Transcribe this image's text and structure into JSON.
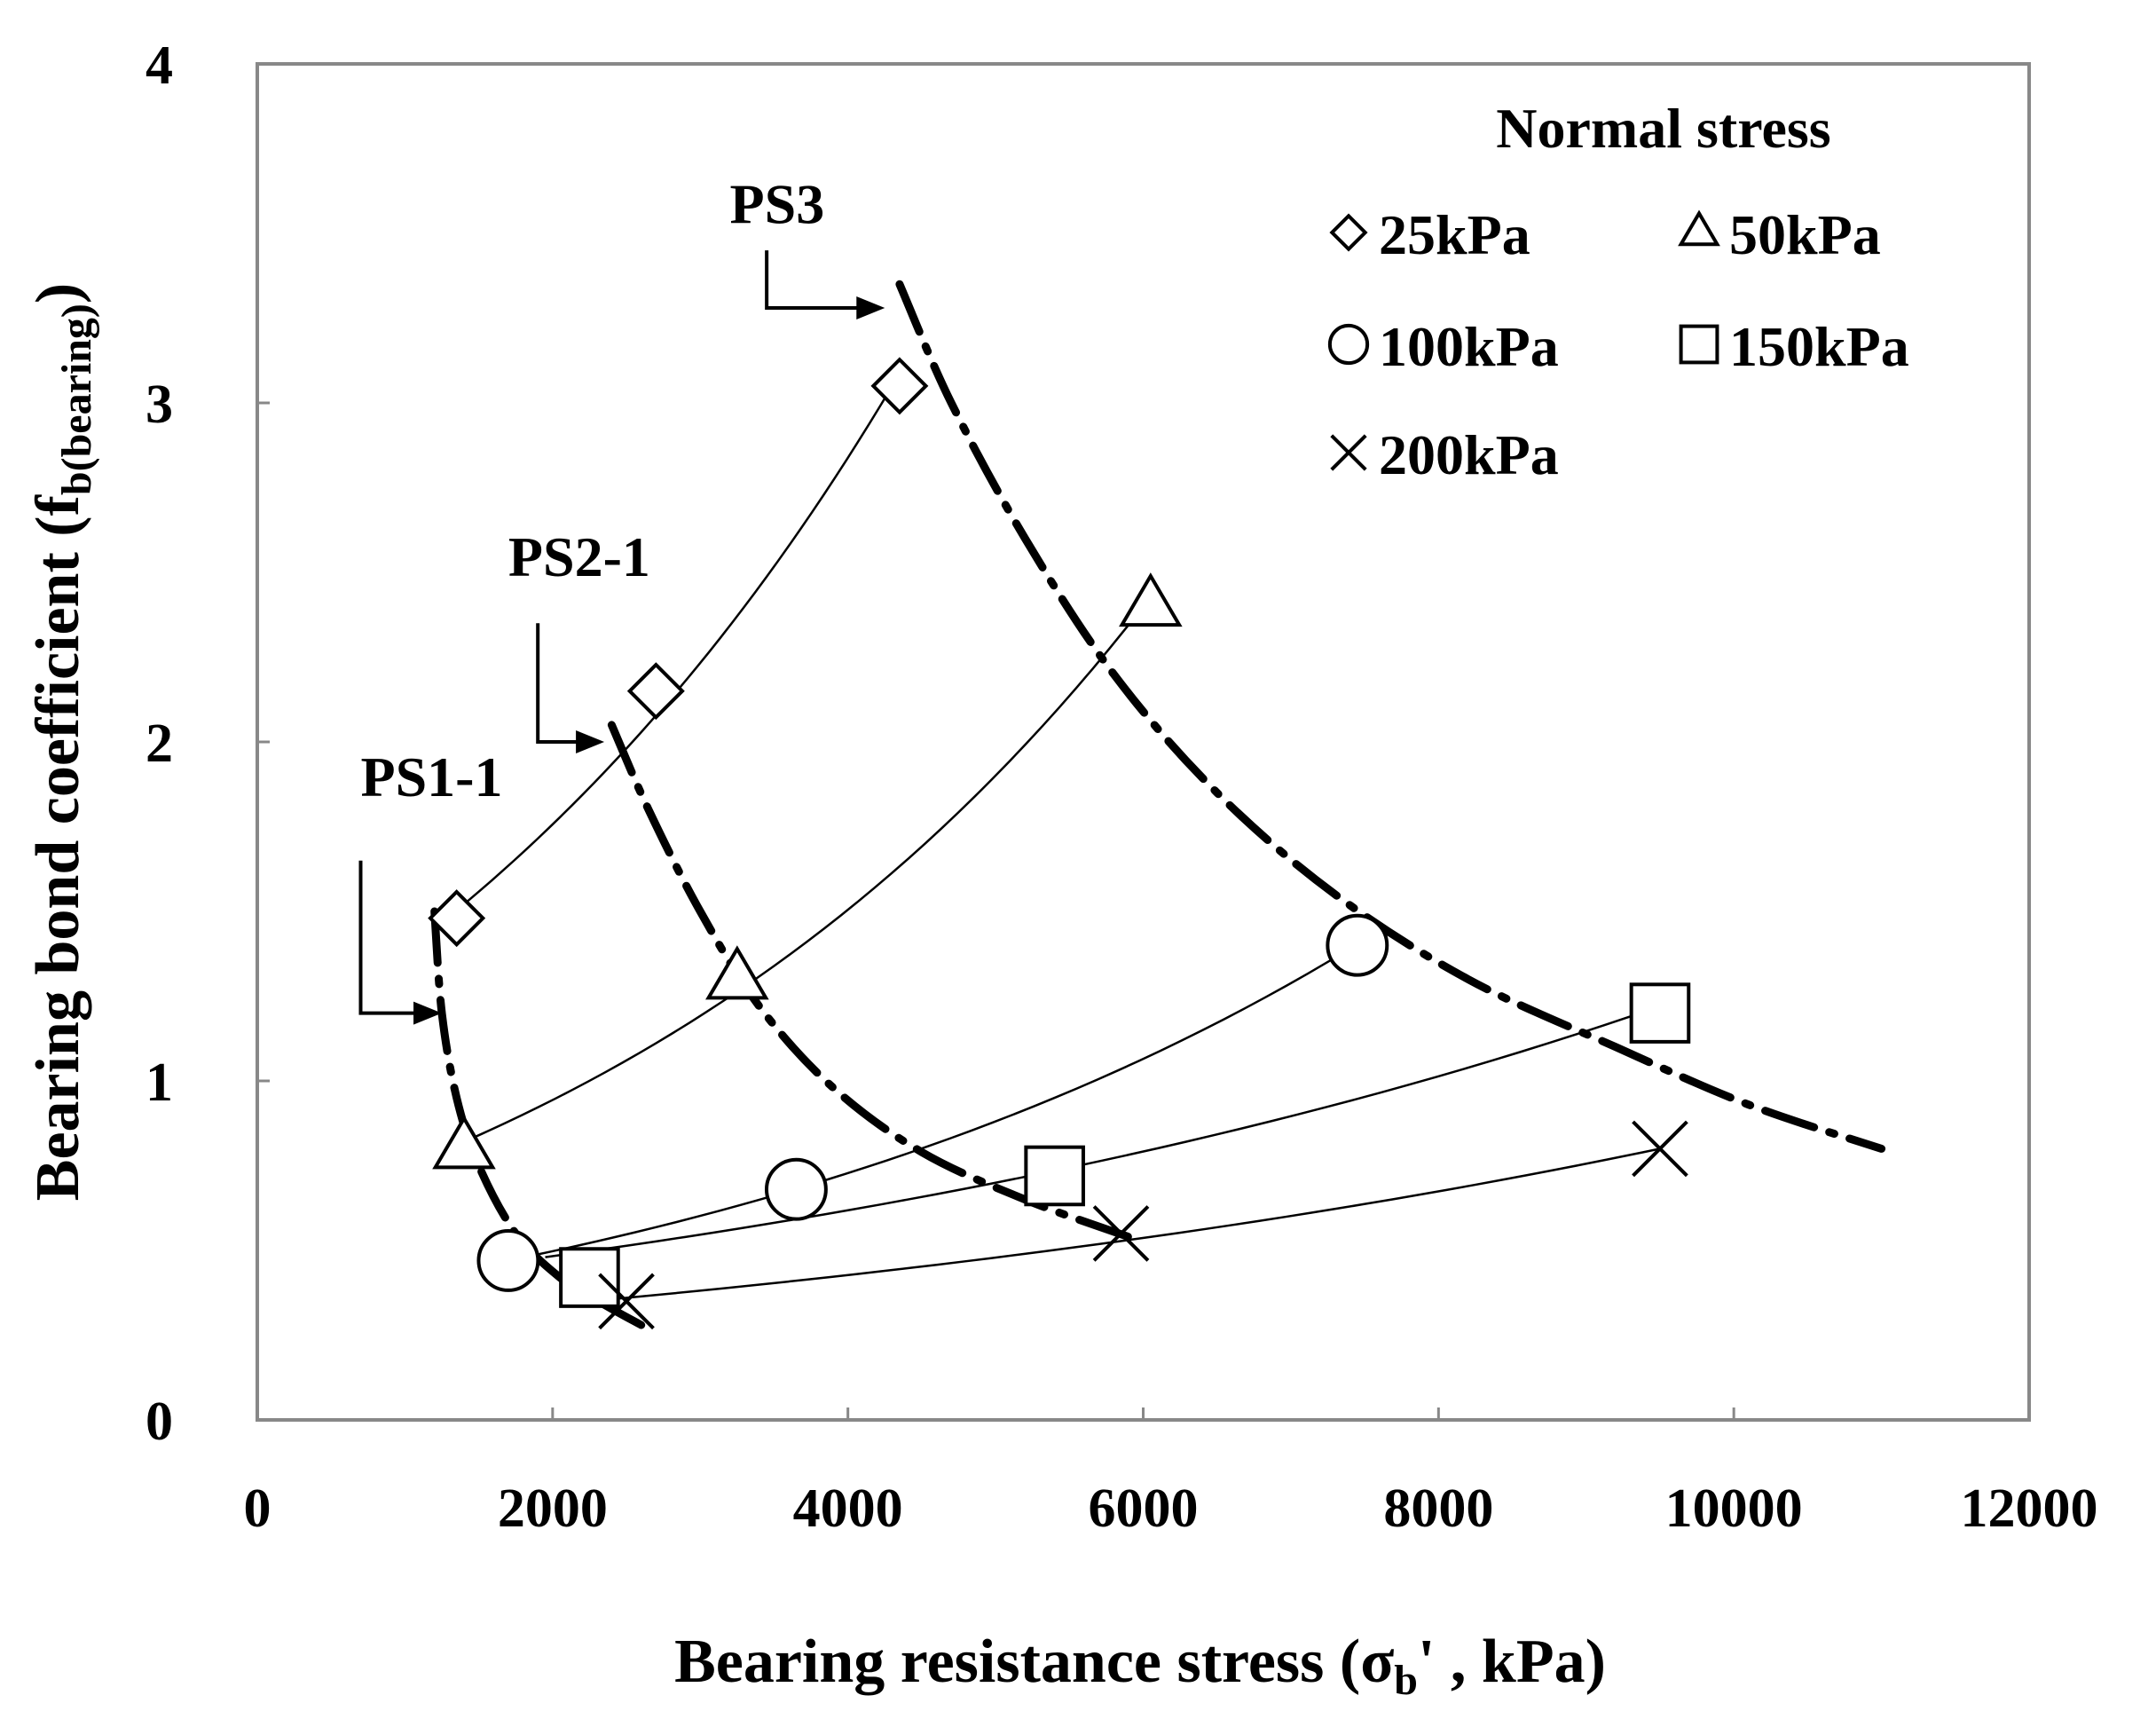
{
  "chart_data": {
    "type": "scatter",
    "title": "",
    "xlabel": {
      "main": "Bearing resistance stress (σ",
      "sub": "b",
      "tail": "' , kPa)"
    },
    "ylabel": {
      "main": "Bearing bond coefficient (f",
      "sub": "b(bearing)",
      "tail": ")"
    },
    "xlim": [
      0,
      12000
    ],
    "ylim": [
      0,
      4
    ],
    "xticks": [
      0,
      2000,
      4000,
      6000,
      8000,
      10000,
      12000
    ],
    "yticks": [
      0,
      1,
      2,
      3,
      4
    ],
    "grid": false,
    "legend": {
      "title": "Normal stress",
      "placement": "top-right",
      "entries": [
        {
          "label": "25kPa",
          "marker": "diamond"
        },
        {
          "label": "50kPa",
          "marker": "triangle"
        },
        {
          "label": "100kPa",
          "marker": "circle"
        },
        {
          "label": "150kPa",
          "marker": "square"
        },
        {
          "label": "200kPa",
          "marker": "cross"
        }
      ]
    },
    "series": [
      {
        "name": "25kPa",
        "marker": "diamond",
        "x": [
          1350,
          2700,
          4350
        ],
        "y": [
          1.48,
          2.15,
          3.05
        ]
      },
      {
        "name": "50kPa",
        "marker": "triangle",
        "x": [
          1400,
          3250,
          6050
        ],
        "y": [
          0.8,
          1.3,
          2.4
        ]
      },
      {
        "name": "100kPa",
        "marker": "circle",
        "x": [
          1700,
          3650,
          7450
        ],
        "y": [
          0.47,
          0.68,
          1.4
        ]
      },
      {
        "name": "150kPa",
        "marker": "square",
        "x": [
          2250,
          5400,
          9500
        ],
        "y": [
          0.42,
          0.72,
          1.2
        ]
      },
      {
        "name": "200kPa",
        "marker": "cross",
        "x": [
          2500,
          5850,
          9500
        ],
        "y": [
          0.35,
          0.55,
          0.8
        ]
      }
    ],
    "trend_lines": [
      {
        "series": "25kPa",
        "x": [
          1200,
          4300
        ],
        "y": [
          1.45,
          3.05
        ]
      },
      {
        "series": "50kPa",
        "x": [
          1450,
          6000
        ],
        "y": [
          0.83,
          2.4
        ]
      },
      {
        "series": "100kPa",
        "x": [
          1700,
          7400
        ],
        "y": [
          0.47,
          1.39
        ]
      },
      {
        "series": "150kPa",
        "x": [
          1950,
          9500
        ],
        "y": [
          0.48,
          1.22
        ]
      },
      {
        "series": "200kPa",
        "x": [
          2250,
          9500
        ],
        "y": [
          0.35,
          0.8
        ]
      }
    ],
    "boundary_curves": [
      {
        "name": "PS1-1",
        "x": [
          1200,
          1250,
          1350,
          1500,
          1750,
          2050,
          2350,
          2600
        ],
        "y": [
          1.5,
          1.2,
          0.95,
          0.75,
          0.55,
          0.42,
          0.34,
          0.28
        ]
      },
      {
        "name": "PS2-1",
        "x": [
          2400,
          2650,
          3000,
          3400,
          3900,
          4500,
          5200,
          5900
        ],
        "y": [
          2.05,
          1.8,
          1.5,
          1.22,
          0.98,
          0.79,
          0.65,
          0.54
        ]
      },
      {
        "name": "PS3",
        "x": [
          4350,
          4700,
          5200,
          5800,
          6500,
          7300,
          8200,
          9200,
          10100,
          11000
        ],
        "y": [
          3.35,
          3.0,
          2.6,
          2.2,
          1.85,
          1.55,
          1.3,
          1.1,
          0.93,
          0.8
        ]
      }
    ],
    "annotations": [
      {
        "label": "PS1-1",
        "label_at": [
          700,
          1.84
        ],
        "arrow_from": [
          700,
          1.65
        ],
        "arrow_to": [
          1250,
          1.2
        ]
      },
      {
        "label": "PS2-1",
        "label_at": [
          1700,
          2.49
        ],
        "arrow_from": [
          1900,
          2.35
        ],
        "arrow_to": [
          2350,
          2.0
        ]
      },
      {
        "label": "PS3",
        "label_at": [
          3200,
          3.53
        ],
        "arrow_from": [
          3450,
          3.45
        ],
        "arrow_to": [
          4250,
          3.28
        ]
      }
    ]
  }
}
